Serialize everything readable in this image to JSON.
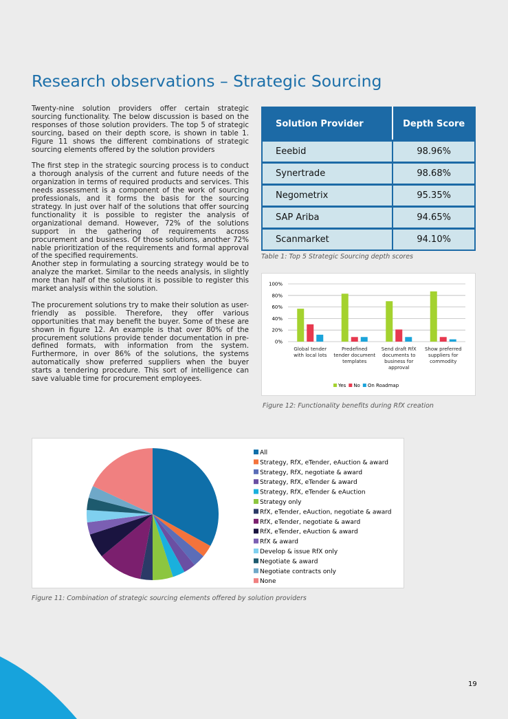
{
  "header": {
    "title": "Research observations – Strategic Sourcing"
  },
  "body": {
    "paragraphs": [
      "Twenty-nine solution providers offer certain strategic sourcing functionality. The below discussion is based on the responses of those solution providers. The top 5 of strategic sourcing, based on their depth score, is shown in table 1. Figure 11 shows the different combinations of strategic sourcing elements offered by the solution providers",
      "The first step in the strategic sourcing process is to conduct a thorough analysis of the current and future needs of the organization in terms of required products and services. This needs assessment is a component of the work of sourcing professionals, and it forms the basis for the sourcing strategy. In just over half of the solutions that offer sourcing functionality it is possible to register the analysis of organizational demand. However, 72% of the solutions support in the gathering of requirements across procurement and business. Of those solutions, another 72% nable prioritization of the requirements and formal approval of the specified requirements.",
      "Another step in formulating a sourcing strategy would be to analyze the market. Similar to the needs analysis, in slightly more than half of the solutions it is possible to register this market analysis within the solution.",
      "The procurement solutions try to make their solution as user-friendly as possible. Therefore, they offer various opportunities that may benefit the buyer. Some of these are shown in figure 12. An example is that over 80% of the procurement solutions provide tender documentation in pre-defined formats, with information from the system. Furthermore, in over 86% of the solutions, the systems automatically show preferred suppliers when the buyer starts a tendering procedure. This sort of intelligence can save valuable time for procurement employees."
    ]
  },
  "table": {
    "header": [
      "Solution Provider",
      "Depth Score"
    ],
    "rows": [
      [
        "Eeebid",
        "98.96%"
      ],
      [
        "Synertrade",
        "98.68%"
      ],
      [
        "Negometrix",
        "95.35%"
      ],
      [
        "SAP Ariba",
        "94.65%"
      ],
      [
        "Scanmarket",
        "94.10%"
      ]
    ],
    "caption": "Table 1: Top 5 Strategic Sourcing depth scores"
  },
  "chart_data": [
    {
      "type": "bar",
      "caption": "Figure 12: Functionality benefits during RfX creation",
      "categories": [
        "Global tender with local lots",
        "Predefined tender document templates",
        "Send draft RfX documents to business for approval",
        "Show preferred suppliers for commodity"
      ],
      "series": [
        {
          "name": "Yes",
          "color": "#a4d22f",
          "values": [
            57,
            83,
            70,
            87
          ]
        },
        {
          "name": "No",
          "color": "#e7394f",
          "values": [
            30,
            8,
            21,
            8
          ]
        },
        {
          "name": "On Roadmap",
          "color": "#1ba4da",
          "values": [
            12,
            8,
            8,
            4
          ]
        }
      ],
      "ylim": [
        0,
        100
      ],
      "yticks": [
        {
          "value": 0,
          "label": "0%"
        },
        {
          "value": 20,
          "label": "20%"
        },
        {
          "value": 40,
          "label": "40%"
        },
        {
          "value": 60,
          "label": "60%"
        },
        {
          "value": 80,
          "label": "80%"
        },
        {
          "value": 100,
          "label": "100%"
        }
      ],
      "grid": true,
      "legend": "bottom"
    },
    {
      "type": "pie",
      "caption": "Figure 11: Combination of strategic sourcing elements offered by solution providers",
      "categories": [
        "All",
        "Strategy, RfX, eTender, eAuction & award",
        "Strategy, RfX, negotiate & award",
        "Strategy, RfX, eTender & award",
        "Strategy, RfX, eTender & eAuction",
        "Strategy only",
        "RfX, eTender, eAuction, negotiate & award",
        "RfX, eTender, negotiate & award",
        "RfX, eTender, eAuction & award",
        "RfX & award",
        "Develop & issue RfX only",
        "Negotiate & award",
        "Negotiate contracts only",
        "None"
      ],
      "values": [
        33,
        3,
        3,
        3,
        3,
        5,
        3,
        11,
        6,
        3,
        3,
        3,
        3,
        18
      ],
      "colors": [
        "#0f6fa9",
        "#f4733c",
        "#5b6db8",
        "#6a4fa3",
        "#1ab0dd",
        "#8cc63f",
        "#2b3a67",
        "#7b1f6e",
        "#1a1440",
        "#7b5fb3",
        "#7fd0ef",
        "#1d5a6e",
        "#6fa8c8",
        "#f08080"
      ],
      "legend": "right"
    }
  ],
  "footer": {
    "page": "19"
  }
}
